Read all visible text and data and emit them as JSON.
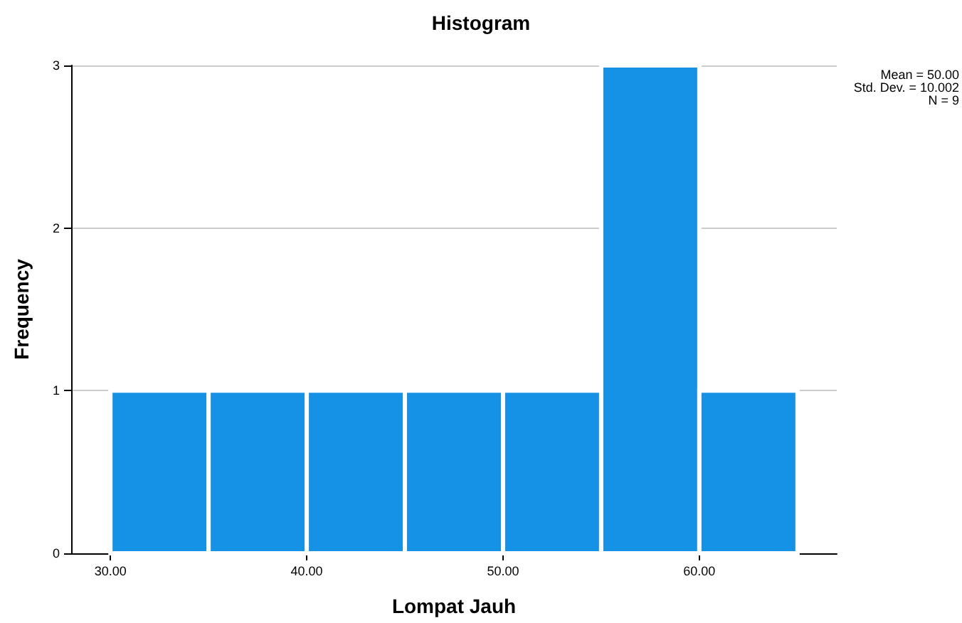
{
  "chart_data": {
    "type": "histogram",
    "title": "Histogram",
    "xlabel": "Lompat Jauh",
    "ylabel": "Frequency",
    "bins": [
      30,
      35,
      40,
      45,
      50,
      55,
      60,
      65
    ],
    "values": [
      1,
      1,
      1,
      1,
      1,
      3,
      1
    ],
    "color": "#1591e6",
    "xlim": [
      28,
      67
    ],
    "xticks": [
      {
        "value": 30,
        "label": "30.00"
      },
      {
        "value": 40,
        "label": "40.00"
      },
      {
        "value": 50,
        "label": "50.00"
      },
      {
        "value": 60,
        "label": "60.00"
      }
    ],
    "ylim": [
      0,
      3
    ],
    "yticks": [
      0,
      1,
      2,
      3
    ],
    "grid": "y",
    "annotations": [
      "Mean = 50.00",
      "Std. Dev. = 10.002",
      "N = 9"
    ]
  }
}
